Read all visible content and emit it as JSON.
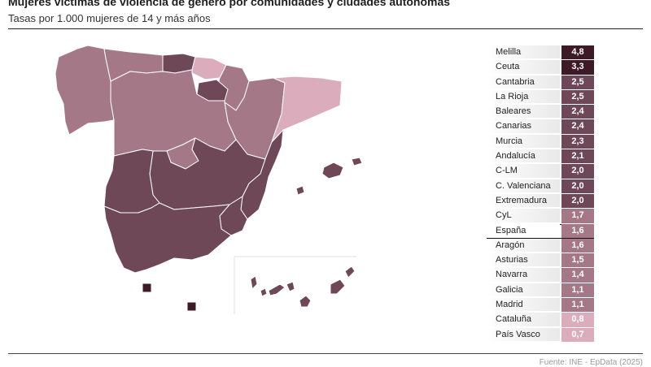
{
  "title": "Mujeres víctimas de violencia de género por comunidades y ciudades autónomas",
  "subtitle": "Tasas por 1.000 mujeres de 14 y más años",
  "source": "Fuente: INE - EpData (2025)",
  "colors": {
    "very_high": "#3d1a26",
    "high": "#6e4856",
    "mid": "#a57888",
    "low": "#dbadbc"
  },
  "chart_data": {
    "type": "table",
    "rows": [
      {
        "name": "Melilla",
        "value": "4,8",
        "level": "very_high"
      },
      {
        "name": "Ceuta",
        "value": "3,3",
        "level": "very_high"
      },
      {
        "name": "Cantabria",
        "value": "2,5",
        "level": "high"
      },
      {
        "name": "La Rioja",
        "value": "2,5",
        "level": "high"
      },
      {
        "name": "Baleares",
        "value": "2,4",
        "level": "high"
      },
      {
        "name": "Canarias",
        "value": "2,4",
        "level": "high"
      },
      {
        "name": "Murcia",
        "value": "2,3",
        "level": "high"
      },
      {
        "name": "Andalucía",
        "value": "2,1",
        "level": "high"
      },
      {
        "name": "C-LM",
        "value": "2,0",
        "level": "high"
      },
      {
        "name": "C. Valenciana",
        "value": "2,0",
        "level": "high"
      },
      {
        "name": "Extremadura",
        "value": "2,0",
        "level": "high"
      },
      {
        "name": "CyL",
        "value": "1,7",
        "level": "mid"
      },
      {
        "name": "España",
        "value": "1,6",
        "level": "mid",
        "highlight": true
      },
      {
        "name": "Aragón",
        "value": "1,6",
        "level": "mid"
      },
      {
        "name": "Asturias",
        "value": "1,5",
        "level": "mid"
      },
      {
        "name": "Navarra",
        "value": "1,4",
        "level": "mid"
      },
      {
        "name": "Galicia",
        "value": "1,1",
        "level": "mid"
      },
      {
        "name": "Madrid",
        "value": "1,1",
        "level": "mid"
      },
      {
        "name": "Cataluña",
        "value": "0,8",
        "level": "low"
      },
      {
        "name": "País Vasco",
        "value": "0,7",
        "level": "low"
      }
    ],
    "map_regions": [
      {
        "name": "Galicia",
        "level": "mid"
      },
      {
        "name": "Asturias",
        "level": "mid"
      },
      {
        "name": "Cantabria",
        "level": "high"
      },
      {
        "name": "País Vasco",
        "level": "low"
      },
      {
        "name": "Navarra",
        "level": "mid"
      },
      {
        "name": "La Rioja",
        "level": "high"
      },
      {
        "name": "Aragón",
        "level": "mid"
      },
      {
        "name": "Cataluña",
        "level": "low"
      },
      {
        "name": "CyL",
        "level": "mid"
      },
      {
        "name": "Madrid",
        "level": "mid"
      },
      {
        "name": "C-LM",
        "level": "high"
      },
      {
        "name": "C. Valenciana",
        "level": "high"
      },
      {
        "name": "Extremadura",
        "level": "high"
      },
      {
        "name": "Andalucía",
        "level": "high"
      },
      {
        "name": "Murcia",
        "level": "high"
      },
      {
        "name": "Baleares",
        "level": "high"
      },
      {
        "name": "Canarias",
        "level": "high"
      },
      {
        "name": "Ceuta",
        "level": "very_high"
      },
      {
        "name": "Melilla",
        "level": "very_high"
      }
    ]
  }
}
